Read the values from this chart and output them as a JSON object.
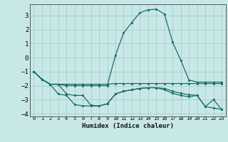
{
  "xlabel": "Humidex (Indice chaleur)",
  "xlim": [
    -0.5,
    23.5
  ],
  "ylim": [
    -4.2,
    3.8
  ],
  "yticks": [
    -4,
    -3,
    -2,
    -1,
    0,
    1,
    2,
    3
  ],
  "xticks": [
    0,
    1,
    2,
    3,
    4,
    5,
    6,
    7,
    8,
    9,
    10,
    11,
    12,
    13,
    14,
    15,
    16,
    17,
    18,
    19,
    20,
    21,
    22,
    23
  ],
  "bg_color": "#c8e8e8",
  "grid_color": "#a8cccc",
  "line_color": "#1a6b6b",
  "lines": [
    {
      "x": [
        0,
        1,
        2,
        3,
        4,
        5,
        6,
        7,
        8,
        9,
        10,
        11,
        12,
        13,
        14,
        15,
        16,
        17,
        18,
        19,
        20,
        21,
        22,
        23
      ],
      "y": [
        -1.0,
        -1.55,
        -1.9,
        -1.9,
        -2.0,
        -2.0,
        -2.0,
        -2.0,
        -2.0,
        -2.0,
        0.15,
        1.75,
        2.5,
        3.2,
        3.4,
        3.45,
        3.1,
        1.1,
        -0.2,
        -1.6,
        -1.75,
        -1.75,
        -1.75,
        -1.75
      ]
    },
    {
      "x": [
        0,
        1,
        2,
        3,
        4,
        5,
        6,
        7,
        8,
        9,
        10,
        11,
        12,
        13,
        14,
        15,
        16,
        17,
        18,
        19,
        20,
        21,
        22,
        23
      ],
      "y": [
        -1.0,
        -1.55,
        -1.9,
        -1.9,
        -1.9,
        -1.9,
        -1.9,
        -1.9,
        -1.9,
        -1.9,
        -1.85,
        -1.85,
        -1.85,
        -1.85,
        -1.85,
        -1.85,
        -1.85,
        -1.85,
        -1.85,
        -1.85,
        -1.85,
        -1.85,
        -1.85,
        -1.85
      ]
    },
    {
      "x": [
        0,
        1,
        2,
        3,
        4,
        5,
        6,
        7,
        8,
        9,
        10,
        11,
        12,
        13,
        14,
        15,
        16,
        17,
        18,
        19,
        20,
        21,
        22,
        23
      ],
      "y": [
        -1.0,
        -1.55,
        -1.9,
        -2.6,
        -2.7,
        -3.35,
        -3.45,
        -3.45,
        -3.45,
        -3.3,
        -2.6,
        -2.4,
        -2.3,
        -2.2,
        -2.15,
        -2.15,
        -2.2,
        -2.4,
        -2.55,
        -2.65,
        -2.7,
        -3.5,
        -3.6,
        -3.7
      ]
    },
    {
      "x": [
        0,
        1,
        2,
        3,
        4,
        5,
        6,
        7,
        8,
        9,
        10,
        11,
        12,
        13,
        14,
        15,
        16,
        17,
        18,
        19,
        20,
        21,
        22,
        23
      ],
      "y": [
        -1.0,
        -1.55,
        -1.9,
        -1.9,
        -2.6,
        -2.7,
        -2.7,
        -3.4,
        -3.45,
        -3.3,
        -2.6,
        -2.4,
        -2.3,
        -2.2,
        -2.15,
        -2.15,
        -2.3,
        -2.55,
        -2.7,
        -2.8,
        -2.7,
        -3.5,
        -3.0,
        -3.7
      ]
    }
  ]
}
